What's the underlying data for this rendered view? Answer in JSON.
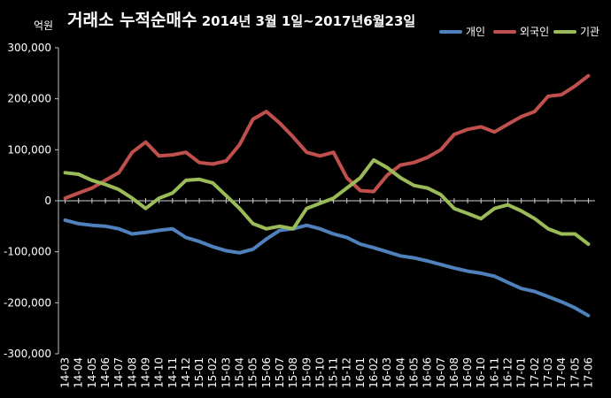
{
  "title_main": "거래소 누적순매수",
  "title_sub": "2014년 3월 1일~2017년6월23일",
  "unit_label": "억원",
  "colors": {
    "background": "#000000",
    "gridline": "#cfcfcf"
  },
  "chart_data": {
    "type": "line",
    "title": "거래소 누적순매수 2014년 3월 1일~2017년6월23일",
    "ylabel": "억원",
    "ylim": [
      -300000,
      300000
    ],
    "yticks": [
      300000,
      200000,
      100000,
      0,
      -100000,
      -200000,
      -300000
    ],
    "ytick_labels": [
      "300,000",
      "200,000",
      "100,000",
      "0",
      "-100,000",
      "-200,000",
      "-300,000"
    ],
    "x": [
      "14-03",
      "14-04",
      "14-05",
      "14-06",
      "14-07",
      "14-08",
      "14-09",
      "14-10",
      "14-11",
      "14-12",
      "15-01",
      "15-02",
      "15-03",
      "15-04",
      "15-05",
      "15-06",
      "15-07",
      "15-08",
      "15-09",
      "15-10",
      "15-11",
      "15-12",
      "16-01",
      "16-02",
      "16-03",
      "16-04",
      "16-05",
      "16-06",
      "16-07",
      "16-08",
      "16-09",
      "16-10",
      "16-11",
      "16-12",
      "17-01",
      "17-02",
      "17-03",
      "17-04",
      "17-05",
      "17-06"
    ],
    "grid": "zero-line only",
    "legend_position": "top-right",
    "series": [
      {
        "name": "개인",
        "color": "#4f81bd",
        "values": [
          -38000,
          -45000,
          -48000,
          -50000,
          -55000,
          -65000,
          -62000,
          -58000,
          -55000,
          -72000,
          -80000,
          -90000,
          -98000,
          -102000,
          -95000,
          -75000,
          -58000,
          -55000,
          -48000,
          -55000,
          -65000,
          -72000,
          -85000,
          -92000,
          -100000,
          -108000,
          -112000,
          -118000,
          -125000,
          -132000,
          -138000,
          -142000,
          -148000,
          -160000,
          -172000,
          -178000,
          -188000,
          -198000,
          -210000,
          -225000
        ]
      },
      {
        "name": "외국인",
        "color": "#c0504d",
        "values": [
          5000,
          15000,
          25000,
          40000,
          55000,
          95000,
          115000,
          88000,
          90000,
          95000,
          75000,
          72000,
          78000,
          110000,
          160000,
          175000,
          152000,
          125000,
          95000,
          88000,
          95000,
          45000,
          20000,
          18000,
          50000,
          70000,
          75000,
          85000,
          100000,
          130000,
          140000,
          145000,
          135000,
          150000,
          165000,
          175000,
          205000,
          208000,
          225000,
          245000
        ]
      },
      {
        "name": "기관",
        "color": "#9bbb59",
        "values": [
          55000,
          52000,
          40000,
          32000,
          22000,
          5000,
          -15000,
          5000,
          15000,
          40000,
          42000,
          35000,
          10000,
          -15000,
          -45000,
          -55000,
          -50000,
          -55000,
          -15000,
          -5000,
          5000,
          25000,
          45000,
          80000,
          65000,
          45000,
          30000,
          25000,
          12000,
          -15000,
          -25000,
          -35000,
          -15000,
          -8000,
          -20000,
          -35000,
          -55000,
          -65000,
          -65000,
          -85000
        ]
      }
    ]
  }
}
